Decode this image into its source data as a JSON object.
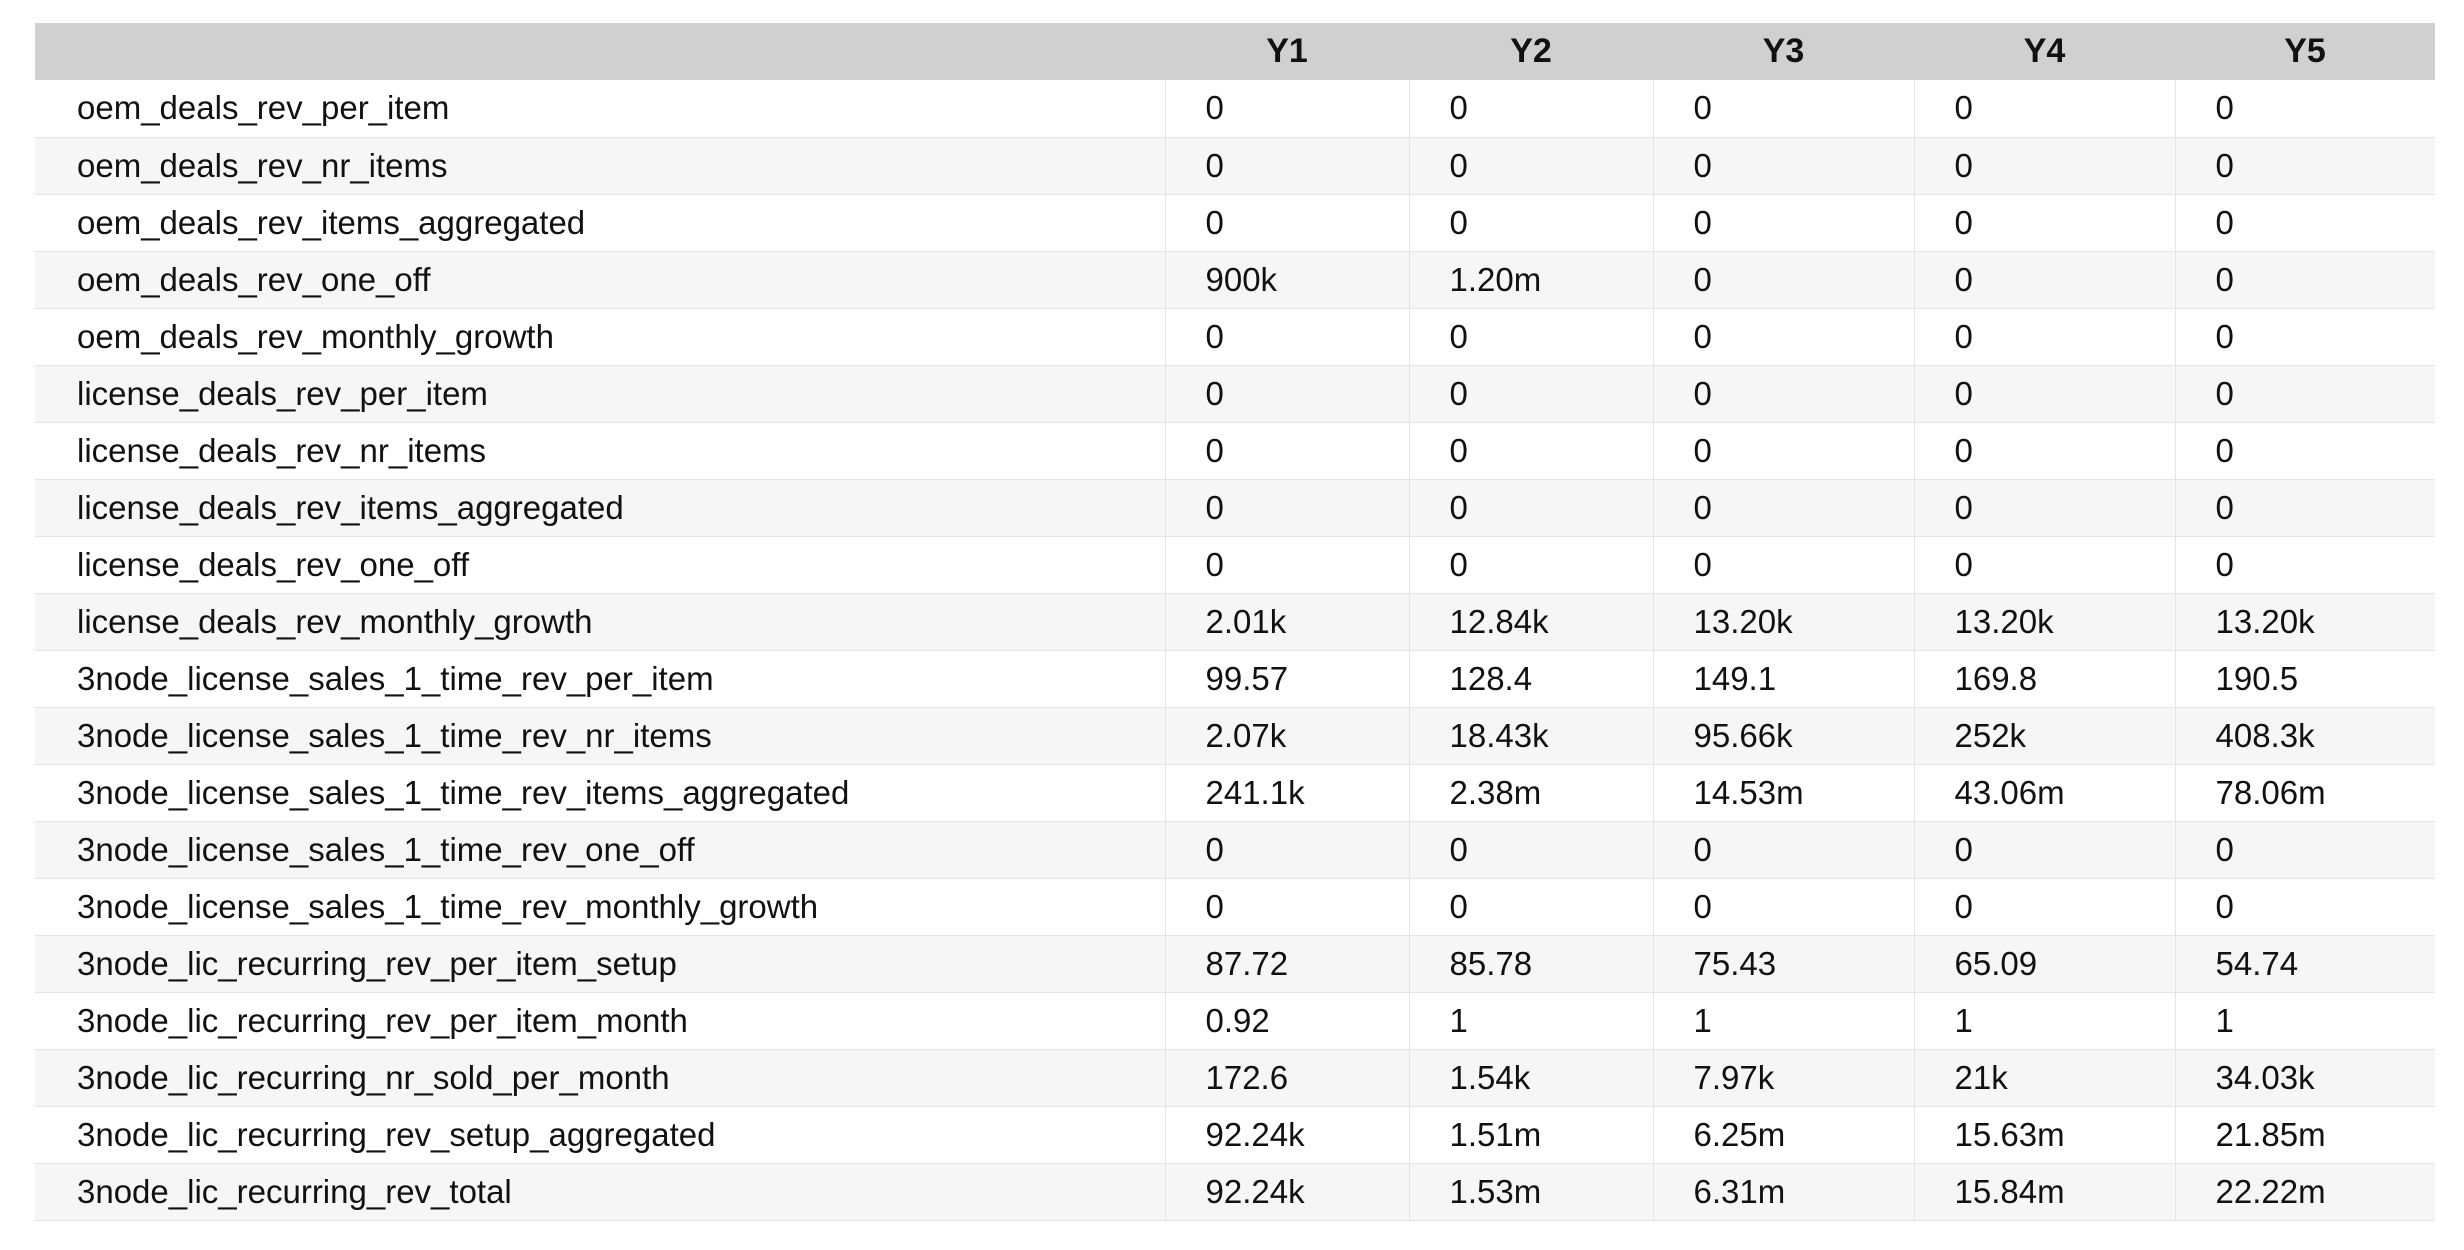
{
  "table": {
    "columns": [
      "",
      "Y1",
      "Y2",
      "Y3",
      "Y4",
      "Y5"
    ],
    "rows": [
      {
        "name": "oem_deals_rev_per_item",
        "values": [
          "0",
          "0",
          "0",
          "0",
          "0"
        ]
      },
      {
        "name": "oem_deals_rev_nr_items",
        "values": [
          "0",
          "0",
          "0",
          "0",
          "0"
        ]
      },
      {
        "name": "oem_deals_rev_items_aggregated",
        "values": [
          "0",
          "0",
          "0",
          "0",
          "0"
        ]
      },
      {
        "name": "oem_deals_rev_one_off",
        "values": [
          "900k",
          "1.20m",
          "0",
          "0",
          "0"
        ]
      },
      {
        "name": "oem_deals_rev_monthly_growth",
        "values": [
          "0",
          "0",
          "0",
          "0",
          "0"
        ]
      },
      {
        "name": "license_deals_rev_per_item",
        "values": [
          "0",
          "0",
          "0",
          "0",
          "0"
        ]
      },
      {
        "name": "license_deals_rev_nr_items",
        "values": [
          "0",
          "0",
          "0",
          "0",
          "0"
        ]
      },
      {
        "name": "license_deals_rev_items_aggregated",
        "values": [
          "0",
          "0",
          "0",
          "0",
          "0"
        ]
      },
      {
        "name": "license_deals_rev_one_off",
        "values": [
          "0",
          "0",
          "0",
          "0",
          "0"
        ]
      },
      {
        "name": "license_deals_rev_monthly_growth",
        "values": [
          "2.01k",
          "12.84k",
          "13.20k",
          "13.20k",
          "13.20k"
        ]
      },
      {
        "name": "3node_license_sales_1_time_rev_per_item",
        "values": [
          "99.57",
          "128.4",
          "149.1",
          "169.8",
          "190.5"
        ]
      },
      {
        "name": "3node_license_sales_1_time_rev_nr_items",
        "values": [
          "2.07k",
          "18.43k",
          "95.66k",
          "252k",
          "408.3k"
        ]
      },
      {
        "name": "3node_license_sales_1_time_rev_items_aggregated",
        "values": [
          "241.1k",
          "2.38m",
          "14.53m",
          "43.06m",
          "78.06m"
        ]
      },
      {
        "name": "3node_license_sales_1_time_rev_one_off",
        "values": [
          "0",
          "0",
          "0",
          "0",
          "0"
        ]
      },
      {
        "name": "3node_license_sales_1_time_rev_monthly_growth",
        "values": [
          "0",
          "0",
          "0",
          "0",
          "0"
        ]
      },
      {
        "name": "3node_lic_recurring_rev_per_item_setup",
        "values": [
          "87.72",
          "85.78",
          "75.43",
          "65.09",
          "54.74"
        ]
      },
      {
        "name": "3node_lic_recurring_rev_per_item_month",
        "values": [
          "0.92",
          "1",
          "1",
          "1",
          "1"
        ]
      },
      {
        "name": "3node_lic_recurring_nr_sold_per_month",
        "values": [
          "172.6",
          "1.54k",
          "7.97k",
          "21k",
          "34.03k"
        ]
      },
      {
        "name": "3node_lic_recurring_rev_setup_aggregated",
        "values": [
          "92.24k",
          "1.51m",
          "6.25m",
          "15.63m",
          "21.85m"
        ]
      },
      {
        "name": "3node_lic_recurring_rev_total",
        "values": [
          "92.24k",
          "1.53m",
          "6.31m",
          "15.84m",
          "22.22m"
        ]
      }
    ]
  }
}
